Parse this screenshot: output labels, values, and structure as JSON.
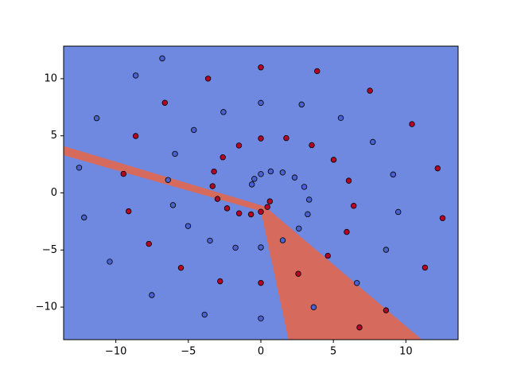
{
  "chart_data": {
    "type": "scatter",
    "background": "#7089e0",
    "regions": [
      {
        "color": "#d66a5d",
        "x": [
          -13.6,
          0.3,
          11.1,
          1.9,
          0.0,
          -13.6
        ],
        "y": [
          4.1,
          -1.2,
          -12.85,
          -12.85,
          -1.6,
          3.3
        ]
      }
    ],
    "series": [
      {
        "color": "#4a61d0",
        "x": [
          -0.62,
          -0.45,
          0,
          0.68,
          1.5,
          2.33,
          2.99,
          3.33,
          3.23,
          2.62,
          1.51,
          0,
          -1.75,
          -3.51,
          -5.02,
          -6.06,
          -6.4,
          -5.92,
          -4.62,
          -2.58,
          0,
          2.81,
          5.51,
          7.72,
          9.12,
          9.47,
          8.63,
          6.62,
          3.64,
          0,
          -3.88,
          -7.52,
          -10.42,
          -12.19,
          -12.53,
          -11.32,
          -8.63,
          -6.8
        ],
        "values": [
          0.74,
          1.23,
          1.65,
          1.88,
          1.79,
          1.35,
          0.53,
          -0.59,
          -1.87,
          -3.12,
          -4.15,
          -4.77,
          -4.8,
          -4.18,
          -2.9,
          -1.07,
          1.13,
          3.42,
          5.51,
          7.08,
          7.88,
          7.74,
          6.56,
          4.46,
          1.61,
          -1.67,
          -4.98,
          -7.89,
          -10.01,
          -10.99,
          -10.66,
          -8.95,
          -6.02,
          -2.15,
          2.21,
          6.54,
          10.28,
          11.78
        ]
      },
      {
        "color": "#b40426",
        "x": [
          0.62,
          0.45,
          0,
          -0.68,
          -1.5,
          -2.33,
          -2.99,
          -3.33,
          -3.23,
          -2.62,
          -1.51,
          0,
          1.75,
          3.51,
          5.02,
          6.06,
          6.4,
          5.92,
          4.62,
          2.58,
          0,
          -2.81,
          -5.51,
          -7.72,
          -9.12,
          -9.47,
          -8.63,
          -6.62,
          -3.64,
          0,
          3.88,
          7.52,
          10.42,
          12.19,
          12.53,
          11.32,
          8.63,
          6.8
        ],
        "values": [
          -0.74,
          -1.23,
          -1.65,
          -1.88,
          -1.79,
          -1.35,
          -0.53,
          0.59,
          1.87,
          3.12,
          4.15,
          4.77,
          4.8,
          4.18,
          2.9,
          1.07,
          -1.13,
          -3.42,
          -5.51,
          -7.08,
          -7.88,
          -7.74,
          -6.56,
          -4.46,
          -1.61,
          1.67,
          4.98,
          7.89,
          10.01,
          10.99,
          10.66,
          8.95,
          6.02,
          2.15,
          -2.21,
          -6.54,
          -10.28,
          -11.78
        ]
      }
    ],
    "xlim": [
      -13.6,
      13.6
    ],
    "ylim": [
      -12.85,
      12.85
    ],
    "xticks": [
      {
        "value": -10,
        "label": "−10"
      },
      {
        "value": -5,
        "label": "−5"
      },
      0,
      5,
      10
    ],
    "yticks": [
      {
        "value": -10,
        "label": "−10"
      },
      {
        "value": -5,
        "label": "−5"
      },
      0,
      5,
      10
    ]
  }
}
